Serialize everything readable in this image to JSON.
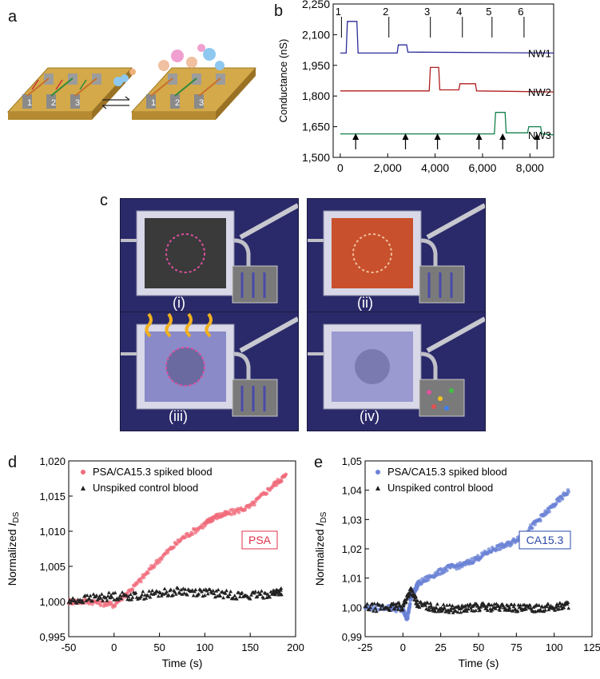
{
  "panels": {
    "a": "a",
    "b": "b",
    "c": "c",
    "d": "d",
    "e": "e"
  },
  "panel_a": {
    "chips": [
      "1",
      "2",
      "3"
    ]
  },
  "panel_c": {
    "tiles": [
      "(i)",
      "(ii)",
      "(iii)",
      "(iv)"
    ]
  },
  "chart_data": [
    {
      "panel": "b",
      "type": "line",
      "ylabel": "Conductance (nS)",
      "xlabel": "",
      "ylim": [
        1500,
        2250
      ],
      "xlim": [
        -300,
        9000
      ],
      "yticks": [
        "2,250",
        "2,100",
        "1,950",
        "1,800",
        "1,650",
        "1,500"
      ],
      "ytick_values": [
        2250,
        2100,
        1950,
        1800,
        1650,
        1500
      ],
      "xticks": [
        "0",
        "2,000",
        "4,000",
        "6,000",
        "8,000"
      ],
      "xtick_values": [
        0,
        2000,
        4000,
        6000,
        8000
      ],
      "event_labels": [
        "1",
        "2",
        "3",
        "4",
        "5",
        "6"
      ],
      "event_x": [
        50,
        2050,
        3800,
        5150,
        6400,
        7750
      ],
      "arrow_x": [
        650,
        2750,
        4100,
        5850,
        6850,
        8300
      ],
      "grid": false,
      "series": [
        {
          "name": "NW1",
          "color": "#2b2b9a",
          "x": [
            0,
            250,
            300,
            700,
            750,
            2400,
            2450,
            2800,
            2850,
            9000
          ],
          "y": [
            2010,
            2010,
            2165,
            2165,
            2010,
            2010,
            2050,
            2050,
            2015,
            2010
          ]
        },
        {
          "name": "NW2",
          "color": "#b01e1e",
          "x": [
            0,
            3750,
            3800,
            4150,
            4200,
            5000,
            5050,
            5700,
            5750,
            9000
          ],
          "y": [
            1825,
            1825,
            1940,
            1940,
            1830,
            1830,
            1860,
            1860,
            1825,
            1820
          ]
        },
        {
          "name": "NW3",
          "color": "#14804a",
          "x": [
            0,
            6500,
            6550,
            6950,
            7000,
            7900,
            7950,
            8450,
            8500,
            9000
          ],
          "y": [
            1615,
            1615,
            1720,
            1720,
            1620,
            1620,
            1650,
            1650,
            1615,
            1610
          ]
        }
      ]
    },
    {
      "panel": "d",
      "type": "scatter",
      "xlabel": "Time (s)",
      "ylabel_main": "Normalized",
      "ylabel_italic": "I",
      "ylabel_sub": "DS",
      "xlim": [
        -50,
        200
      ],
      "ylim": [
        0.995,
        1.02
      ],
      "xticks": [
        "-50",
        "0",
        "50",
        "100",
        "150",
        "200"
      ],
      "xtick_values": [
        -50,
        0,
        50,
        100,
        150,
        200
      ],
      "yticks": [
        "1,020",
        "1,015",
        "1,010",
        "1,005",
        "1,000",
        "0,995"
      ],
      "ytick_values": [
        1.02,
        1.015,
        1.01,
        1.005,
        1.0,
        0.995
      ],
      "annotation": "PSA",
      "annotation_color": "#e0304a",
      "legend_position": "top-left",
      "series": [
        {
          "name": "PSA/CA15.3 spiked blood",
          "color": "#f06a7a",
          "marker": "circle",
          "x": [
            -50,
            -25,
            0,
            25,
            50,
            75,
            100,
            110,
            125,
            150,
            175,
            190
          ],
          "y": [
            1.0,
            1.0,
            0.9995,
            1.0025,
            1.006,
            1.009,
            1.011,
            1.012,
            1.0125,
            1.0135,
            1.0165,
            1.018
          ]
        },
        {
          "name": "Unspiked control blood",
          "color": "#222222",
          "marker": "triangle",
          "x": [
            -50,
            -25,
            0,
            25,
            50,
            75,
            100,
            125,
            150,
            175,
            185
          ],
          "y": [
            1.0,
            1.0005,
            1.0008,
            1.0008,
            1.0012,
            1.0015,
            1.0013,
            1.001,
            1.0008,
            1.0012,
            1.0015
          ]
        }
      ]
    },
    {
      "panel": "e",
      "type": "scatter",
      "xlabel": "Time (s)",
      "ylabel_main": "Normalized",
      "ylabel_italic": "I",
      "ylabel_sub": "DS",
      "xlim": [
        -25,
        125
      ],
      "ylim": [
        0.99,
        1.05
      ],
      "xticks": [
        "-25",
        "0",
        "25",
        "50",
        "75",
        "100",
        "125"
      ],
      "xtick_values": [
        -25,
        0,
        25,
        50,
        75,
        100,
        125
      ],
      "yticks": [
        "1,05",
        "1,04",
        "1,03",
        "1,02",
        "1,01",
        "1,00",
        "0,99"
      ],
      "ytick_values": [
        1.05,
        1.04,
        1.03,
        1.02,
        1.01,
        1.0,
        0.99
      ],
      "annotation": "CA15.3",
      "annotation_color": "#2a4aa8",
      "legend_position": "top-left",
      "series": [
        {
          "name": "PSA/CA15.3 spiked blood",
          "color": "#6a82d6",
          "marker": "circle",
          "x": [
            -25,
            -10,
            0,
            3,
            5,
            8,
            10,
            20,
            30,
            40,
            50,
            60,
            70,
            80,
            90,
            100,
            110
          ],
          "y": [
            1.0,
            1.0,
            0.999,
            0.996,
            1.003,
            1.006,
            1.008,
            1.011,
            1.0135,
            1.0145,
            1.017,
            1.02,
            1.0215,
            1.025,
            1.03,
            1.035,
            1.04
          ]
        },
        {
          "name": "Unspiked control blood",
          "color": "#222222",
          "marker": "triangle",
          "x": [
            -25,
            -10,
            0,
            5,
            10,
            20,
            30,
            40,
            50,
            60,
            70,
            80,
            90,
            100,
            110
          ],
          "y": [
            1.0,
            1.0,
            1.0005,
            1.006,
            1.001,
            1.0,
            0.9995,
            0.9995,
            1.0003,
            1.0,
            1.0,
            0.9995,
            1.0,
            1.0,
            1.001
          ]
        }
      ]
    }
  ]
}
